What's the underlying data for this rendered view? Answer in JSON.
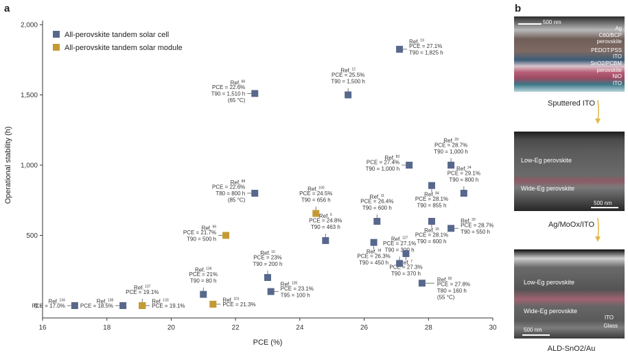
{
  "panel_a_label": "a",
  "panel_b_label": "b",
  "chart_data": {
    "type": "scatter",
    "xlabel": "PCE (%)",
    "ylabel": "Operational stability (h)",
    "xlim": [
      16,
      30
    ],
    "ylim": [
      0,
      2000
    ],
    "xticks": [
      "16",
      "18",
      "20",
      "22",
      "24",
      "26",
      "28",
      "30"
    ],
    "yticks": [
      "0",
      "500",
      "1,000",
      "1,500",
      "2,000"
    ],
    "legend": [
      {
        "name": "All-perovskite tandem solar cell",
        "color": "#57688c"
      },
      {
        "name": "All-perovskite tandem solar module",
        "color": "#c49a33"
      }
    ],
    "series": [
      {
        "name": "All-perovskite tandem solar cell",
        "color": "#57688c",
        "points": [
          {
            "x": 17.0,
            "y": 0,
            "ref": "134",
            "lines": [
              "Ref.",
              "PCE = 17.0%"
            ],
            "side": "left"
          },
          {
            "x": 18.5,
            "y": 0,
            "ref": "138",
            "lines": [
              "Ref.",
              "PCE = 18.5%"
            ],
            "side": "left"
          },
          {
            "x": 19.1,
            "y": 0,
            "ref": "137",
            "lines": [
              "Ref.",
              "PCE = 19.1%"
            ],
            "side": "above"
          },
          {
            "x": 21.0,
            "y": 80,
            "ref": "136",
            "lines": [
              "Ref.",
              "PCE = 21%",
              "T90 = 80 h"
            ],
            "side": "above"
          },
          {
            "x": 22.6,
            "y": 1510,
            "ref": "86",
            "lines": [
              "Ref.",
              "PCE = 22.6%",
              "T90 = 1,510 h",
              "(65 °C)"
            ],
            "side": "left"
          },
          {
            "x": 22.6,
            "y": 800,
            "ref": "88",
            "lines": [
              "Ref.",
              "PCE = 22.6%",
              "T80 = 800 h",
              "(85 °C)"
            ],
            "side": "left"
          },
          {
            "x": 23.0,
            "y": 200,
            "ref": "10",
            "lines": [
              "Ref.",
              "PCE = 23%",
              "T90 = 200 h"
            ],
            "side": "above"
          },
          {
            "x": 23.1,
            "y": 100,
            "ref": "128",
            "lines": [
              "Ref.",
              "PCE = 23.1%",
              "T95 = 100 h"
            ],
            "side": "right"
          },
          {
            "x": 24.8,
            "y": 463,
            "ref": "5",
            "lines": [
              "Ref.",
              "PCE = 24.8%",
              "T90 = 463 h"
            ],
            "side": "above"
          },
          {
            "x": 25.5,
            "y": 1500,
            "ref": "12",
            "lines": [
              "Ref.",
              "PCE = 25.5%",
              "T90 = 1,500 h"
            ],
            "side": "above"
          },
          {
            "x": 26.3,
            "y": 450,
            "ref": "18",
            "lines": [
              "Ref.",
              "PCE = 26.3%",
              "T90 = 450 h"
            ],
            "side": "below"
          },
          {
            "x": 26.4,
            "y": 600,
            "ref": "11",
            "lines": [
              "Ref.",
              "PCE = 26.4%",
              "T90 = 600 h"
            ],
            "side": "above"
          },
          {
            "x": 27.1,
            "y": 1825,
            "ref": "19",
            "lines": [
              "Ref.",
              "PCE = 27.1%",
              "T90 = 1,825 h"
            ],
            "side": "right"
          },
          {
            "x": 27.1,
            "y": 300,
            "ref": "127",
            "lines": [
              "Ref.",
              "PCE = 27.1%",
              "T90 = 300 h"
            ],
            "side": "above"
          },
          {
            "x": 27.3,
            "y": 370,
            "ref": "7",
            "lines": [
              "Ref.",
              "PCE = 27.3%",
              "T90 = 370 h"
            ],
            "side": "below"
          },
          {
            "x": 27.4,
            "y": 1000,
            "ref": "83",
            "lines": [
              "Ref.",
              "PCE = 27.4%",
              "T90 = 1,000 h"
            ],
            "side": "left"
          },
          {
            "x": 27.8,
            "y": 160,
            "ref": "82",
            "lines": [
              "Ref.",
              "PCE = 27.8%",
              "T80 = 160 h",
              "(55 °C)"
            ],
            "side": "below-right"
          },
          {
            "x": 28.1,
            "y": 855,
            "ref": "84",
            "lines": [
              "Ref.",
              "PCE = 28.1%",
              "T90 = 855 h"
            ],
            "side": "below"
          },
          {
            "x": 28.1,
            "y": 600,
            "ref": "25",
            "lines": [
              "Ref.",
              "PCE = 28.1%",
              "T90 = 600 h"
            ],
            "side": "below"
          },
          {
            "x": 28.7,
            "y": 1000,
            "ref": "29",
            "lines": [
              "Ref.",
              "PCE = 28.7%",
              "T90 = 1,000 h"
            ],
            "side": "above"
          },
          {
            "x": 28.7,
            "y": 550,
            "ref": "20",
            "lines": [
              "Ref.",
              "PCE = 28.7%",
              "T90 = 550 h"
            ],
            "side": "right"
          },
          {
            "x": 29.1,
            "y": 800,
            "ref": "24",
            "lines": [
              "Ref.",
              "PCE = 29.1%",
              "T90 = 800 h"
            ],
            "side": "above"
          }
        ]
      },
      {
        "name": "All-perovskite tandem solar module",
        "color": "#c49a33",
        "points": [
          {
            "x": 19.1,
            "y": 0,
            "ref": "133",
            "lines": [
              "Ref.",
              "PCE = 19.1%"
            ],
            "side": "right"
          },
          {
            "x": 21.3,
            "y": 10,
            "ref": "101",
            "lines": [
              "Ref.",
              "PCE = 21.3%"
            ],
            "side": "right"
          },
          {
            "x": 21.7,
            "y": 500,
            "ref": "99",
            "lines": [
              "Ref.",
              "PCE = 21.7%",
              "T90 = 500 h"
            ],
            "side": "left"
          },
          {
            "x": 24.5,
            "y": 656,
            "ref": "100",
            "lines": [
              "Ref.",
              "PCE = 24.5%",
              "T90 = 656 h"
            ],
            "side": "above"
          }
        ]
      }
    ]
  },
  "panel_b": {
    "image1": {
      "scale": "500 nm",
      "layers": [
        "Ag",
        "C60/BCP",
        "perovskite",
        "PEDOT:PSS",
        "ITO",
        "SnO2/PCBM",
        "perovskite",
        "NiO",
        "ITO"
      ]
    },
    "caption1": "Sputtered ITO",
    "image2": {
      "scale": "500 nm",
      "labels": [
        "Low-Eg perovskite",
        "Wide-Eg perovskite"
      ]
    },
    "caption2": "Ag/MoOx/ITO",
    "image3": {
      "scale": "500 nm",
      "labels": [
        "Low-Eg perovskite",
        "Wide-Eg perovskite",
        "ITO",
        "Glass"
      ]
    },
    "caption3": "ALD-SnO2/Au"
  }
}
